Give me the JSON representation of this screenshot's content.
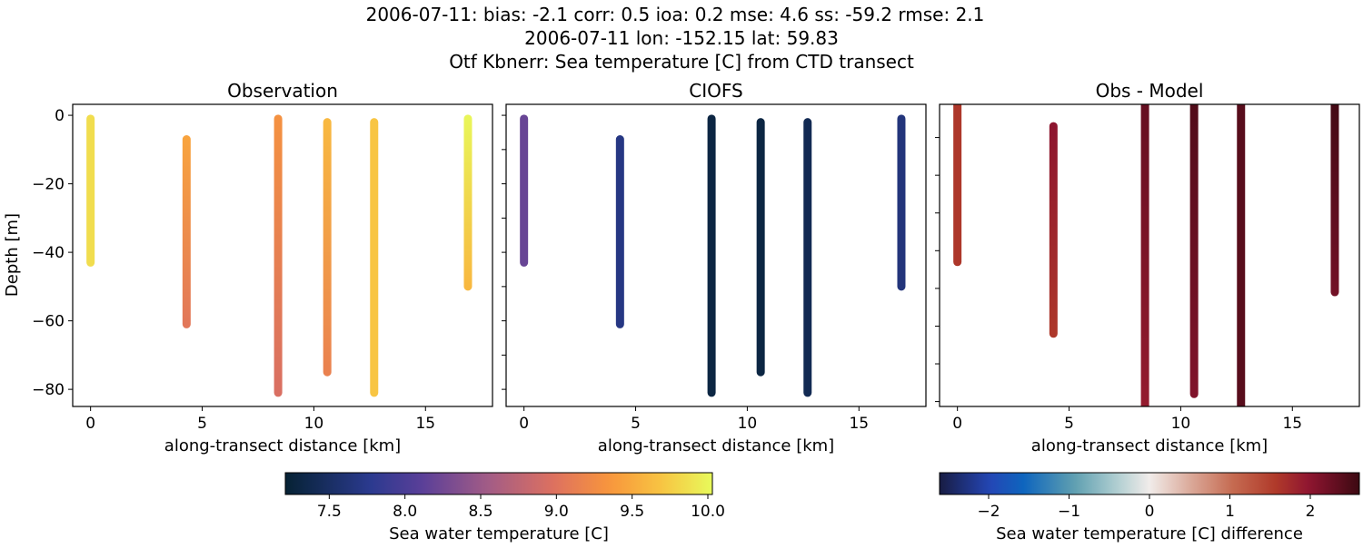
{
  "title_lines": [
    "2006-07-11: bias: -2.1  corr: 0.5  ioa: 0.2  mse: 4.6  ss: -59.2  rmse: 2.1",
    "2006-07-11 lon: -152.15 lat: 59.83",
    "Otf Kbnerr: Sea temperature [C] from CTD transect"
  ],
  "chart_data": [
    {
      "type": "scatter",
      "title": "Observation",
      "xlabel": "along-transect distance [km]",
      "ylabel": "Depth [m]",
      "xlim": [
        -0.8,
        18.0
      ],
      "ylim": [
        -85,
        3.2
      ],
      "xticks": [
        0,
        5,
        10,
        15
      ],
      "yticks": [
        0,
        -20,
        -40,
        -60,
        -80
      ],
      "ytick_labels": [
        "0",
        "−20",
        "−40",
        "−60",
        "−80"
      ],
      "colormap": "thermal",
      "casts": [
        {
          "x": 0.0,
          "depth_top": -1,
          "depth_bottom": -43,
          "value_top": 9.85,
          "value_bottom": 9.85
        },
        {
          "x": 4.3,
          "depth_top": -7,
          "depth_bottom": -61,
          "value_top": 9.45,
          "value_bottom": 9.05
        },
        {
          "x": 8.4,
          "depth_top": -1,
          "depth_bottom": -81,
          "value_top": 9.3,
          "value_bottom": 8.95
        },
        {
          "x": 10.6,
          "depth_top": -2,
          "depth_bottom": -75,
          "value_top": 9.6,
          "value_bottom": 9.15
        },
        {
          "x": 12.7,
          "depth_top": -2,
          "depth_bottom": -81,
          "value_top": 9.7,
          "value_bottom": 9.7
        },
        {
          "x": 16.9,
          "depth_top": -1,
          "depth_bottom": -50,
          "value_top": 10.0,
          "value_bottom": 9.6
        }
      ]
    },
    {
      "type": "scatter",
      "title": "CIOFS",
      "xlabel": "along-transect distance [km]",
      "xlim": [
        -0.8,
        18.0
      ],
      "ylim": [
        -85,
        3.2
      ],
      "xticks": [
        0,
        5,
        10,
        15
      ],
      "yticks": [
        0,
        -10,
        -20,
        -30,
        -40,
        -50,
        -60,
        -70,
        -80
      ],
      "colormap": "thermal",
      "casts": [
        {
          "x": 0.0,
          "depth_top": -1,
          "depth_bottom": -43,
          "value_top": 8.2,
          "value_bottom": 8.2
        },
        {
          "x": 4.3,
          "depth_top": -7,
          "depth_bottom": -61,
          "value_top": 7.7,
          "value_bottom": 7.7
        },
        {
          "x": 8.4,
          "depth_top": -1,
          "depth_bottom": -81,
          "value_top": 7.3,
          "value_bottom": 7.3
        },
        {
          "x": 10.6,
          "depth_top": -2,
          "depth_bottom": -75,
          "value_top": 7.3,
          "value_bottom": 7.3
        },
        {
          "x": 12.7,
          "depth_top": -2,
          "depth_bottom": -81,
          "value_top": 7.4,
          "value_bottom": 7.4
        },
        {
          "x": 16.9,
          "depth_top": -1,
          "depth_bottom": -50,
          "value_top": 7.65,
          "value_bottom": 7.65
        }
      ]
    },
    {
      "type": "scatter",
      "title": "Obs - Model",
      "xlabel": "along-transect distance [km]",
      "xlim": [
        -0.8,
        18.0
      ],
      "ylim": [
        -81.3,
        -1.2
      ],
      "xticks": [
        0,
        5,
        10,
        15
      ],
      "yticks": [
        -10,
        -20,
        -30,
        -40,
        -50,
        -60,
        -70,
        -80
      ],
      "colormap": "balance",
      "casts": [
        {
          "x": 0.0,
          "depth_top": 0,
          "depth_bottom": -43,
          "value_top": 1.6,
          "value_bottom": 1.6
        },
        {
          "x": 4.3,
          "depth_top": -7,
          "depth_bottom": -62,
          "value_top": 2.0,
          "value_bottom": 1.6
        },
        {
          "x": 8.4,
          "depth_top": 0,
          "depth_bottom": -85,
          "value_top": 2.3,
          "value_bottom": 1.9
        },
        {
          "x": 10.6,
          "depth_top": 0,
          "depth_bottom": -78,
          "value_top": 2.45,
          "value_bottom": 2.1
        },
        {
          "x": 12.7,
          "depth_top": 0,
          "depth_bottom": -85,
          "value_top": 2.4,
          "value_bottom": 2.4
        },
        {
          "x": 16.9,
          "depth_top": 0,
          "depth_bottom": -51,
          "value_top": 2.55,
          "value_bottom": 2.2
        }
      ]
    }
  ],
  "colorbars": [
    {
      "label": "Sea water temperature [C]",
      "range": [
        7.21,
        10.03
      ],
      "ticks": [
        7.5,
        8.0,
        8.5,
        9.0,
        9.5,
        10.0
      ],
      "tick_labels": [
        "7.5",
        "8.0",
        "8.5",
        "9.0",
        "9.5",
        "10.0"
      ],
      "colormap": "thermal"
    },
    {
      "label": "Sea water temperature [C] difference",
      "range": [
        -2.61,
        2.61
      ],
      "ticks": [
        -2,
        -1,
        0,
        1,
        2
      ],
      "tick_labels": [
        "−2",
        "−1",
        "0",
        "1",
        "2"
      ],
      "colormap": "balance"
    }
  ],
  "colormaps": {
    "thermal": [
      [
        0,
        "#062234"
      ],
      [
        0.2,
        "#2b3a8f"
      ],
      [
        0.32,
        "#5a3f99"
      ],
      [
        0.47,
        "#a05b87"
      ],
      [
        0.63,
        "#de715f"
      ],
      [
        0.76,
        "#f8963c"
      ],
      [
        0.88,
        "#f8c442"
      ],
      [
        1,
        "#e8fa5b"
      ]
    ],
    "balance": [
      [
        0,
        "#181c43"
      ],
      [
        0.12,
        "#2446b5"
      ],
      [
        0.2,
        "#0e65be"
      ],
      [
        0.32,
        "#5e9fb0"
      ],
      [
        0.42,
        "#aecdd0"
      ],
      [
        0.5,
        "#f1ecea"
      ],
      [
        0.6,
        "#daa898"
      ],
      [
        0.7,
        "#c56a50"
      ],
      [
        0.8,
        "#b03a2a"
      ],
      [
        0.88,
        "#8f1530"
      ],
      [
        1,
        "#3c0912"
      ]
    ]
  }
}
